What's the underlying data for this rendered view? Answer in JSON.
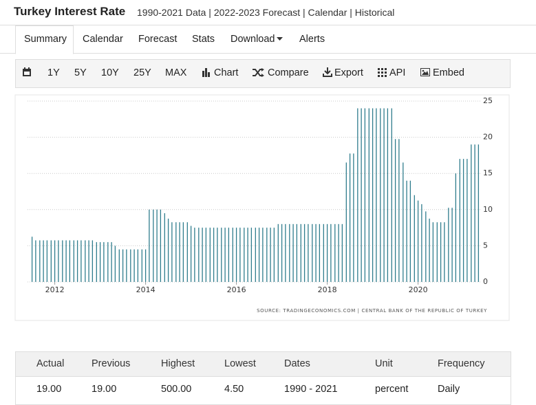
{
  "header": {
    "title": "Turkey Interest Rate",
    "subtitle": "1990-2021 Data | 2022-2023 Forecast | Calendar | Historical"
  },
  "tabs": [
    "Summary",
    "Calendar",
    "Forecast",
    "Stats",
    "Download",
    "Alerts"
  ],
  "toolbar": [
    "1Y",
    "5Y",
    "10Y",
    "25Y",
    "MAX",
    "Chart",
    "Compare",
    "Export",
    "API",
    "Embed"
  ],
  "chart_data": {
    "type": "bar",
    "color": "#2e7c8c",
    "grid": true,
    "source": "SOURCE: TRADINGECONOMICS.COM | CENTRAL BANK OF THE REPUBLIC OF TURKEY",
    "xlim": [
      2011.4,
      2021.4
    ],
    "xticks": [
      2012,
      2014,
      2016,
      2018,
      2020
    ],
    "ylim": [
      0,
      25
    ],
    "yticks": [
      0,
      5,
      10,
      15,
      20,
      25
    ],
    "x": [
      2011.5,
      2011.58,
      2011.67,
      2011.75,
      2011.83,
      2011.92,
      2012.0,
      2012.08,
      2012.17,
      2012.25,
      2012.33,
      2012.42,
      2012.5,
      2012.58,
      2012.67,
      2012.75,
      2012.83,
      2012.92,
      2013.0,
      2013.08,
      2013.17,
      2013.25,
      2013.33,
      2013.42,
      2013.5,
      2013.58,
      2013.67,
      2013.75,
      2013.83,
      2013.92,
      2014.0,
      2014.08,
      2014.17,
      2014.25,
      2014.33,
      2014.42,
      2014.5,
      2014.58,
      2014.67,
      2014.75,
      2014.83,
      2014.92,
      2015.0,
      2015.08,
      2015.17,
      2015.25,
      2015.33,
      2015.42,
      2015.5,
      2015.58,
      2015.67,
      2015.75,
      2015.83,
      2015.92,
      2016.0,
      2016.08,
      2016.17,
      2016.25,
      2016.33,
      2016.42,
      2016.5,
      2016.58,
      2016.67,
      2016.75,
      2016.83,
      2016.92,
      2017.0,
      2017.08,
      2017.17,
      2017.25,
      2017.33,
      2017.42,
      2017.5,
      2017.58,
      2017.67,
      2017.75,
      2017.83,
      2017.92,
      2018.0,
      2018.08,
      2018.17,
      2018.25,
      2018.33,
      2018.42,
      2018.5,
      2018.58,
      2018.67,
      2018.75,
      2018.83,
      2018.92,
      2019.0,
      2019.08,
      2019.17,
      2019.25,
      2019.33,
      2019.42,
      2019.5,
      2019.58,
      2019.67,
      2019.75,
      2019.83,
      2019.92,
      2020.0,
      2020.08,
      2020.17,
      2020.25,
      2020.33,
      2020.42,
      2020.5,
      2020.58,
      2020.67,
      2020.75,
      2020.83,
      2020.92,
      2021.0,
      2021.08,
      2021.17,
      2021.25,
      2021.33
    ],
    "values": [
      6.25,
      5.75,
      5.75,
      5.75,
      5.75,
      5.75,
      5.75,
      5.75,
      5.75,
      5.75,
      5.75,
      5.75,
      5.75,
      5.75,
      5.75,
      5.75,
      5.75,
      5.5,
      5.5,
      5.5,
      5.5,
      5.5,
      5.0,
      4.5,
      4.5,
      4.5,
      4.5,
      4.5,
      4.5,
      4.5,
      4.5,
      10,
      10,
      10,
      10,
      9.5,
      8.75,
      8.25,
      8.25,
      8.25,
      8.25,
      8.25,
      7.75,
      7.5,
      7.5,
      7.5,
      7.5,
      7.5,
      7.5,
      7.5,
      7.5,
      7.5,
      7.5,
      7.5,
      7.5,
      7.5,
      7.5,
      7.5,
      7.5,
      7.5,
      7.5,
      7.5,
      7.5,
      7.5,
      7.5,
      8.0,
      8.0,
      8.0,
      8.0,
      8.0,
      8.0,
      8.0,
      8.0,
      8.0,
      8.0,
      8.0,
      8.0,
      8.0,
      8.0,
      8.0,
      8.0,
      8.0,
      8.0,
      16.5,
      17.75,
      17.75,
      24,
      24,
      24,
      24,
      24,
      24,
      24,
      24,
      24,
      24,
      19.75,
      19.75,
      16.5,
      14,
      14,
      12,
      11.25,
      10.75,
      9.75,
      8.75,
      8.25,
      8.25,
      8.25,
      8.25,
      10.25,
      10.25,
      15,
      17,
      17,
      17,
      19,
      19,
      19
    ]
  },
  "table": {
    "headers": [
      "Actual",
      "Previous",
      "Highest",
      "Lowest",
      "Dates",
      "Unit",
      "Frequency"
    ],
    "rows": [
      [
        "19.00",
        "19.00",
        "500.00",
        "4.50",
        "1990 - 2021",
        "percent",
        "Daily"
      ]
    ]
  }
}
